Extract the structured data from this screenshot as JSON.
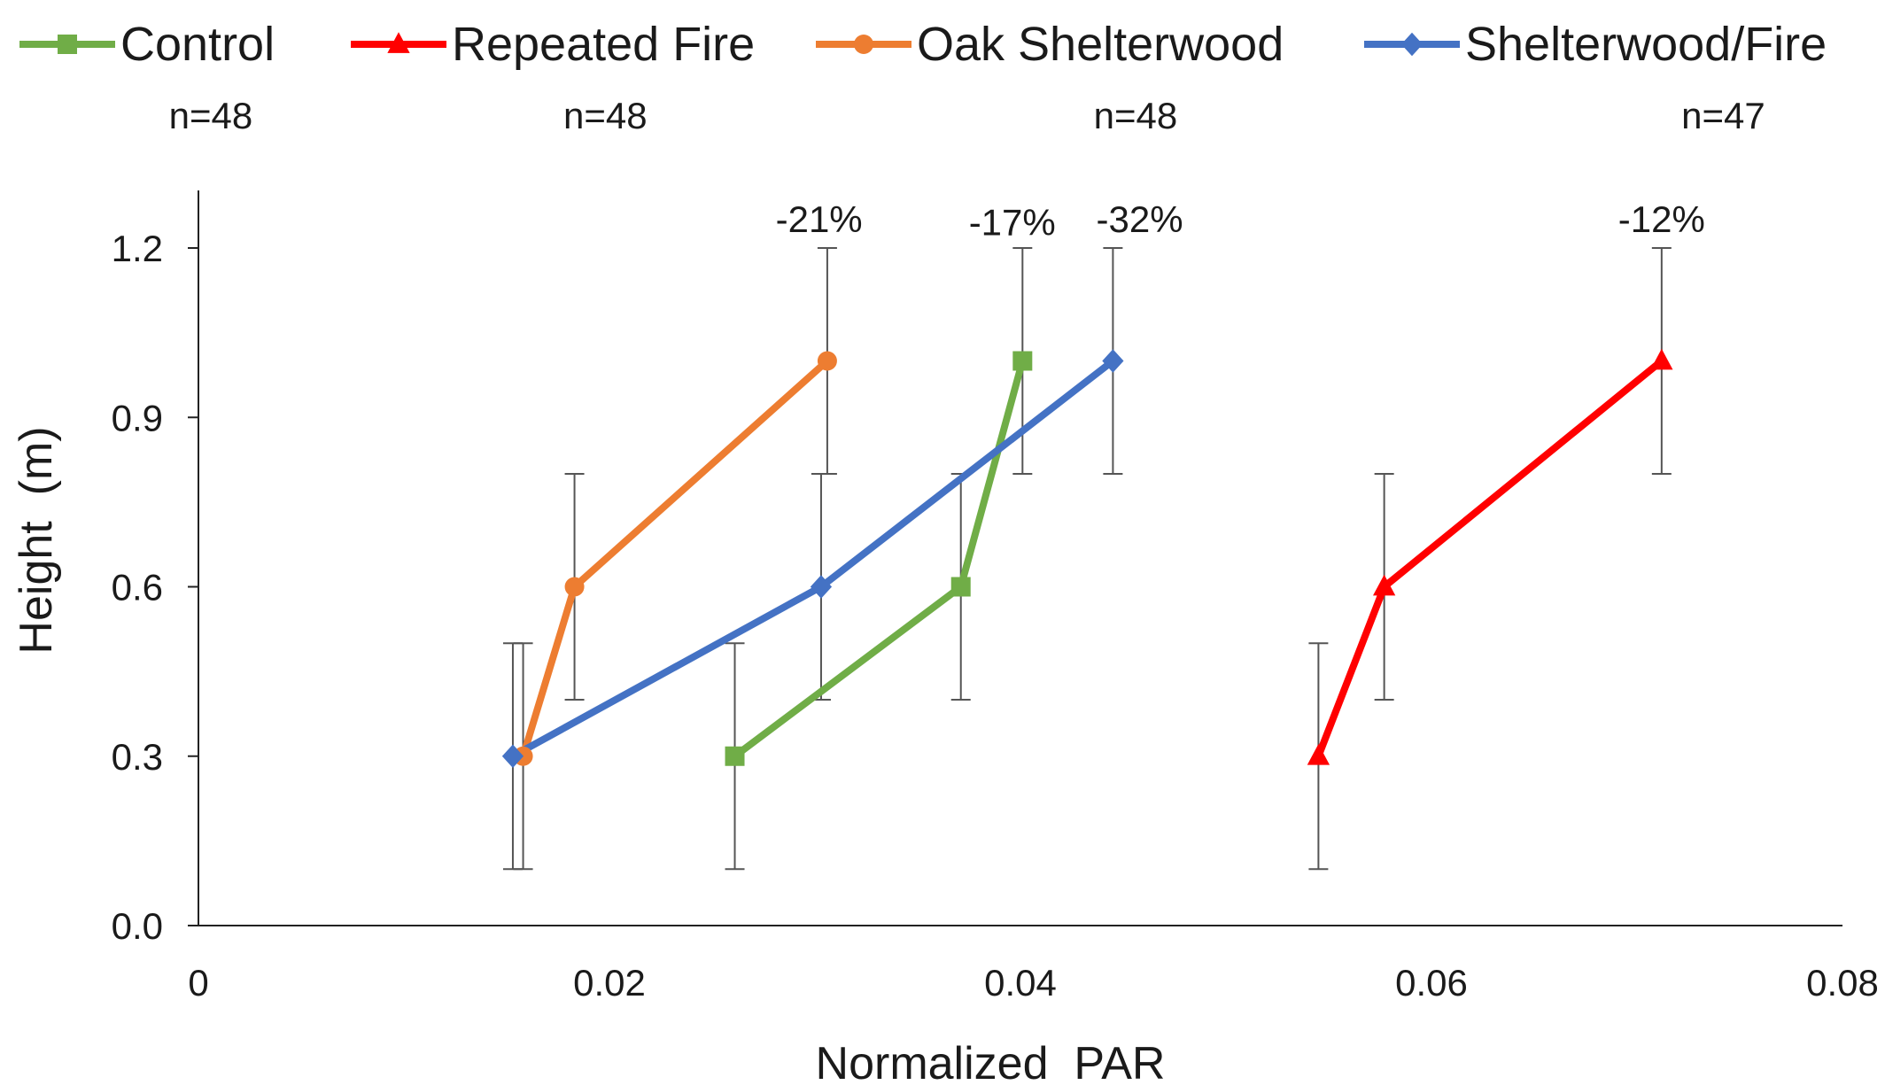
{
  "chart_data": {
    "type": "line",
    "xlabel": "Normalized  PAR",
    "ylabel": "Height  (m)",
    "xlim": [
      0,
      0.08
    ],
    "ylim": [
      0,
      1.2
    ],
    "x_ticks": [
      0,
      0.02,
      0.04,
      0.06,
      0.08
    ],
    "x_tick_labels": [
      "0",
      "0.02",
      "0.04",
      "0.06",
      "0.08"
    ],
    "y_ticks": [
      0,
      0.3,
      0.6,
      0.9,
      1.2
    ],
    "y_tick_labels": [
      "0.0",
      "0.3",
      "0.6",
      "0.9",
      "1.2"
    ],
    "grid": false,
    "legend_position": "top",
    "series": [
      {
        "name": "Control",
        "color": "#70ad47",
        "marker": "square",
        "x": [
          0.0261,
          0.0371,
          0.0401
        ],
        "y": [
          0.3,
          0.6,
          1.0
        ],
        "y_error_low": [
          0.2,
          0.2,
          0.2
        ],
        "y_error_high": [
          0.2,
          0.2,
          0.2
        ]
      },
      {
        "name": "Repeated Fire",
        "color": "#ff0000",
        "marker": "triangle",
        "x": [
          0.0545,
          0.0577,
          0.0712
        ],
        "y": [
          0.3,
          0.6,
          1.0
        ],
        "y_error_low": [
          0.2,
          0.2,
          0.2
        ],
        "y_error_high": [
          0.2,
          0.2,
          0.2
        ]
      },
      {
        "name": "Oak Shelterwood",
        "color": "#ed7d31",
        "marker": "circle",
        "x": [
          0.0158,
          0.0183,
          0.0306
        ],
        "y": [
          0.3,
          0.6,
          1.0
        ],
        "y_error_low": [
          0.2,
          0.2,
          0.2
        ],
        "y_error_high": [
          0.2,
          0.2,
          0.2
        ]
      },
      {
        "name": "Shelterwood/Fire",
        "color": "#4472c4",
        "marker": "diamond",
        "x": [
          0.0153,
          0.0303,
          0.0445
        ],
        "y": [
          0.3,
          0.6,
          1.0
        ],
        "y_error_low": [
          0.2,
          0.2,
          0.2
        ],
        "y_error_high": [
          0.2,
          0.2,
          0.2
        ]
      }
    ],
    "annotations": {
      "sample_sizes": [
        {
          "text": "n=48",
          "x": 0.0006
        },
        {
          "text": "n=48",
          "x": 0.0198
        },
        {
          "text": "n=48",
          "x": 0.0456
        },
        {
          "text": "n=47",
          "x": 0.0742
        }
      ],
      "percent_changes": [
        {
          "text": "-21%",
          "x": 0.0302,
          "y": 1.25
        },
        {
          "text": "-17%",
          "x": 0.0396,
          "y": 1.245
        },
        {
          "text": "-32%",
          "x": 0.0458,
          "y": 1.25
        },
        {
          "text": "-12%",
          "x": 0.0712,
          "y": 1.25
        }
      ]
    }
  }
}
